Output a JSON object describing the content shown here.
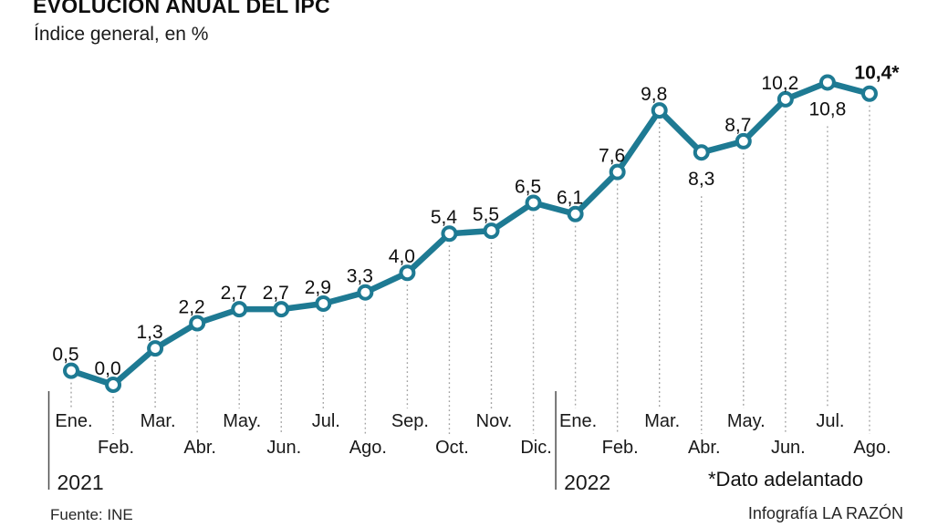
{
  "header": {
    "title": "EVOLUCIÓN ANUAL DEL IPC",
    "subtitle": "Índice general, en %"
  },
  "chart_data": {
    "type": "line",
    "title": "EVOLUCIÓN ANUAL DEL IPC",
    "subtitle": "Índice general, en %",
    "unit": "%",
    "line_color": "#1e7a93",
    "point_style": "open-circle",
    "leader_line_style": "dotted",
    "leader_line_color": "#a3a3a3",
    "axis_line_color": "#4d4d4d",
    "categories": [
      "Ene.",
      "Feb.",
      "Mar.",
      "Abr.",
      "May.",
      "Jun.",
      "Jul.",
      "Ago.",
      "Sep.",
      "Oct.",
      "Nov.",
      "Dic.",
      "Ene.",
      "Feb.",
      "Mar.",
      "Abr.",
      "May.",
      "Jun.",
      "Jul.",
      "Ago."
    ],
    "years": [
      {
        "label": "2021",
        "from_index": 0
      },
      {
        "label": "2022",
        "from_index": 12
      }
    ],
    "values": [
      0.5,
      0.0,
      1.3,
      2.2,
      2.7,
      2.7,
      2.9,
      3.3,
      4.0,
      5.4,
      5.5,
      6.5,
      6.1,
      7.6,
      9.8,
      8.3,
      8.7,
      10.2,
      10.8,
      10.4
    ],
    "value_labels": [
      "0,5",
      "0,0",
      "1,3",
      "2,2",
      "2,7",
      "2,7",
      "2,9",
      "3,3",
      "4,0",
      "5,4",
      "5,5",
      "6,5",
      "6,1",
      "7,6",
      "9,8",
      "8,3",
      "8,7",
      "10,2",
      "10,8",
      "10,4*"
    ],
    "label_side": [
      "above",
      "above",
      "above",
      "above",
      "above",
      "above",
      "above",
      "above",
      "above",
      "above",
      "above",
      "above",
      "above",
      "above",
      "above",
      "below",
      "above",
      "above",
      "below",
      "above"
    ],
    "last_label_bold": true,
    "ylim": [
      0,
      11.5
    ],
    "grid": "none",
    "legend": "none"
  },
  "annotations": {
    "advance_note": "*Dato adelantado"
  },
  "footer": {
    "source": "Fuente: INE",
    "credit": "Infografía LA RAZÓN"
  }
}
